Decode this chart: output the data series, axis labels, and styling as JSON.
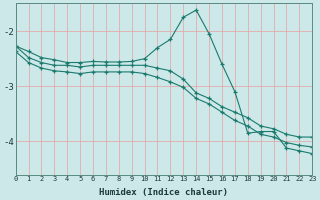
{
  "xlabel": "Humidex (Indice chaleur)",
  "bg_color": "#cde8e8",
  "grid_color": "#e8a0a0",
  "line_color": "#1a7a6e",
  "x_range": [
    0,
    23
  ],
  "y_range": [
    -4.6,
    -1.5
  ],
  "yticks": [
    -4,
    -3,
    -2
  ],
  "series": [
    [
      [
        0,
        -2.27
      ],
      [
        1,
        -2.37
      ],
      [
        2,
        -2.48
      ],
      [
        3,
        -2.52
      ],
      [
        4,
        -2.57
      ],
      [
        5,
        -2.57
      ],
      [
        6,
        -2.55
      ],
      [
        7,
        -2.56
      ],
      [
        8,
        -2.56
      ],
      [
        9,
        -2.55
      ],
      [
        10,
        -2.5
      ],
      [
        11,
        -2.3
      ],
      [
        12,
        -2.15
      ],
      [
        13,
        -1.75
      ],
      [
        14,
        -1.62
      ],
      [
        15,
        -2.05
      ],
      [
        16,
        -2.6
      ],
      [
        17,
        -3.1
      ],
      [
        18,
        -3.85
      ],
      [
        19,
        -3.82
      ],
      [
        20,
        -3.82
      ],
      [
        21,
        -4.12
      ],
      [
        22,
        -4.17
      ],
      [
        23,
        -4.22
      ]
    ],
    [
      [
        0,
        -2.27
      ],
      [
        1,
        -2.48
      ],
      [
        2,
        -2.57
      ],
      [
        3,
        -2.62
      ],
      [
        4,
        -2.62
      ],
      [
        5,
        -2.65
      ],
      [
        6,
        -2.62
      ],
      [
        7,
        -2.62
      ],
      [
        8,
        -2.62
      ],
      [
        9,
        -2.62
      ],
      [
        10,
        -2.62
      ],
      [
        11,
        -2.67
      ],
      [
        12,
        -2.72
      ],
      [
        13,
        -2.87
      ],
      [
        14,
        -3.12
      ],
      [
        15,
        -3.22
      ],
      [
        16,
        -3.37
      ],
      [
        17,
        -3.47
      ],
      [
        18,
        -3.57
      ],
      [
        19,
        -3.72
      ],
      [
        20,
        -3.77
      ],
      [
        21,
        -3.87
      ],
      [
        22,
        -3.92
      ],
      [
        23,
        -3.92
      ]
    ],
    [
      [
        0,
        -2.37
      ],
      [
        1,
        -2.57
      ],
      [
        2,
        -2.67
      ],
      [
        3,
        -2.72
      ],
      [
        4,
        -2.74
      ],
      [
        5,
        -2.77
      ],
      [
        6,
        -2.74
      ],
      [
        7,
        -2.74
      ],
      [
        8,
        -2.74
      ],
      [
        9,
        -2.74
      ],
      [
        10,
        -2.77
      ],
      [
        11,
        -2.84
      ],
      [
        12,
        -2.92
      ],
      [
        13,
        -3.02
      ],
      [
        14,
        -3.22
      ],
      [
        15,
        -3.32
      ],
      [
        16,
        -3.47
      ],
      [
        17,
        -3.62
      ],
      [
        18,
        -3.72
      ],
      [
        19,
        -3.87
      ],
      [
        20,
        -3.92
      ],
      [
        21,
        -4.02
      ],
      [
        22,
        -4.07
      ],
      [
        23,
        -4.1
      ]
    ]
  ]
}
